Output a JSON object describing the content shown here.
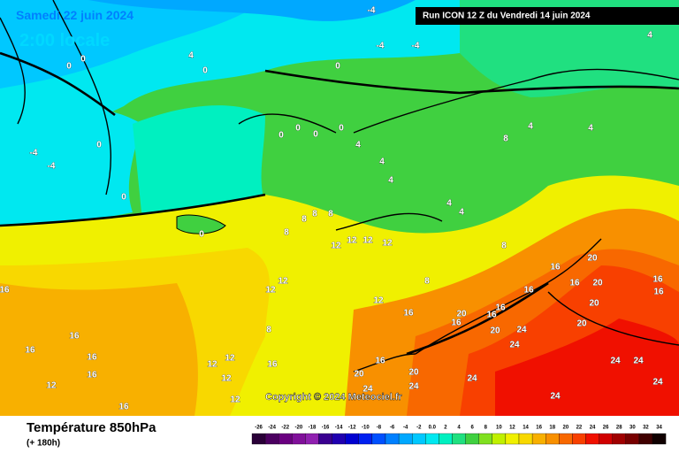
{
  "header": {
    "date": "Samedi 22 juin 2024",
    "time": "2:00 locale",
    "run": "Run ICON 12 Z du Vendredi 14 juin 2024"
  },
  "copyright": "Copyright © 2024 Meteociel.fr",
  "footer": {
    "title": "Température 850hPa",
    "lead": "(+ 180h)"
  },
  "map": {
    "contour_labels": [
      "-4",
      "-4",
      "-4",
      "-4",
      "-4",
      "4",
      "4",
      "0",
      "0",
      "0",
      "0",
      "0",
      "0",
      "0",
      "0",
      "0",
      "0",
      "0",
      "4",
      "4",
      "4",
      "4",
      "4",
      "4",
      "4",
      "8",
      "8",
      "8",
      "8",
      "8",
      "8",
      "8",
      "8",
      "12",
      "12",
      "12",
      "12",
      "12",
      "12",
      "12",
      "12",
      "12",
      "12",
      "12",
      "12",
      "16",
      "16",
      "16",
      "16",
      "16",
      "16",
      "16",
      "16",
      "16",
      "16",
      "16",
      "16",
      "16",
      "16",
      "16",
      "16",
      "16",
      "20",
      "20",
      "20",
      "20",
      "20",
      "20",
      "20",
      "20",
      "24",
      "24",
      "24",
      "24",
      "24",
      "24",
      "24",
      "24",
      "24"
    ]
  },
  "legend": {
    "labels": [
      "-26",
      "-24",
      "-22",
      "-20",
      "-18",
      "-16",
      "-14",
      "-12",
      "-10",
      "-8",
      "-6",
      "-4",
      "-2",
      "0.0",
      "2",
      "4",
      "6",
      "8",
      "10",
      "12",
      "14",
      "16",
      "18",
      "20",
      "22",
      "24",
      "26",
      "28",
      "30",
      "32",
      "34"
    ],
    "colors": [
      "#2a0038",
      "#4b0060",
      "#6a0080",
      "#80109a",
      "#9020b0",
      "#3a0090",
      "#2000b0",
      "#0000d0",
      "#0020f0",
      "#0050ff",
      "#0080ff",
      "#00a8ff",
      "#00c8ff",
      "#00e8f0",
      "#00f0c0",
      "#20e080",
      "#40d040",
      "#80e020",
      "#c0f000",
      "#f0f000",
      "#f8d800",
      "#f8b000",
      "#f89000",
      "#f86800",
      "#f84000",
      "#f01000",
      "#d00000",
      "#a00000",
      "#780000",
      "#400000",
      "#100000"
    ]
  }
}
